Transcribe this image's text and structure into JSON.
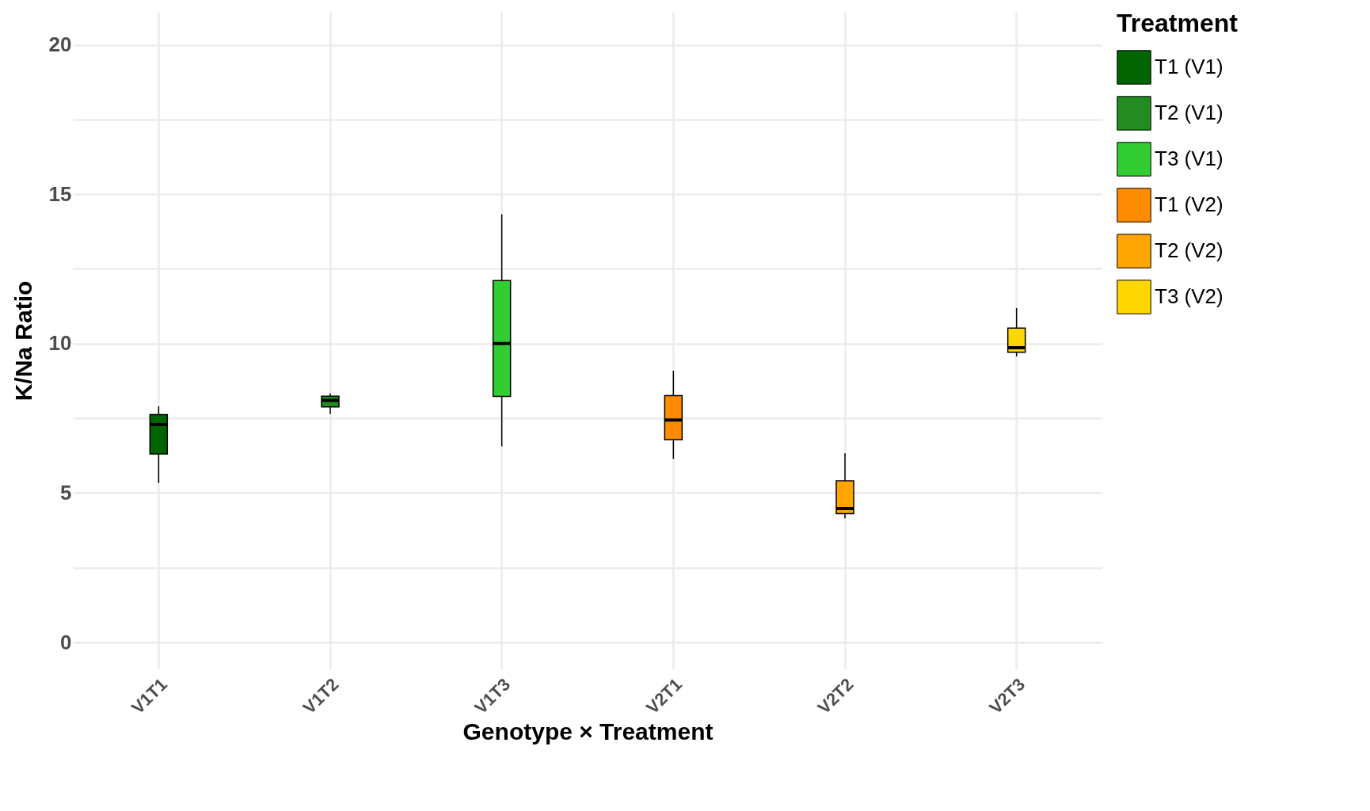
{
  "chart_data": {
    "type": "box",
    "xlabel": "Genotype × Treatment",
    "ylabel": "K/Na Ratio",
    "legend_title": "Treatment",
    "categories": [
      "V1T1",
      "V1T2",
      "V1T3",
      "V2T1",
      "V2T2",
      "V2T3"
    ],
    "ylim": [
      -0.9,
      21.1
    ],
    "yticks": [
      0,
      {
        "value": 2.5,
        "label": null
      },
      5,
      {
        "value": 7.5,
        "label": null
      },
      10,
      {
        "value": 12.5,
        "label": null
      },
      15,
      {
        "value": 17.5,
        "label": null
      },
      20
    ],
    "grid": true,
    "legend": "right",
    "series": [
      {
        "name": "T1 (V1)",
        "color": "#006400",
        "boxes": [
          {
            "low": 5.33,
            "q1": 6.3,
            "median": 7.29,
            "q3": 7.62,
            "high": 7.9
          },
          null,
          null,
          null,
          null,
          null
        ]
      },
      {
        "name": "T2 (V1)",
        "color": "#228b22",
        "boxes": [
          null,
          {
            "low": 7.64,
            "q1": 7.88,
            "median": 8.1,
            "q3": 8.24,
            "high": 8.33
          },
          null,
          null,
          null,
          null
        ]
      },
      {
        "name": "T3 (V1)",
        "color": "#32cd32",
        "boxes": [
          null,
          null,
          {
            "low": 6.56,
            "q1": 8.23,
            "median": 10.0,
            "q3": 12.11,
            "high": 14.33
          },
          null,
          null,
          null
        ]
      },
      {
        "name": "T1 (V2)",
        "color": "#ff8c00",
        "boxes": [
          null,
          null,
          null,
          {
            "low": 6.14,
            "q1": 6.78,
            "median": 7.44,
            "q3": 8.26,
            "high": 9.09
          },
          null,
          null
        ]
      },
      {
        "name": "T2 (V2)",
        "color": "#ffa500",
        "boxes": [
          null,
          null,
          null,
          null,
          {
            "low": 4.15,
            "q1": 4.31,
            "median": 4.48,
            "q3": 5.41,
            "high": 6.33
          },
          null
        ]
      },
      {
        "name": "T3 (V2)",
        "color": "#ffd700",
        "boxes": [
          null,
          null,
          null,
          null,
          null,
          {
            "low": 9.57,
            "q1": 9.71,
            "median": 9.86,
            "q3": 10.52,
            "high": 11.19
          }
        ]
      }
    ]
  }
}
